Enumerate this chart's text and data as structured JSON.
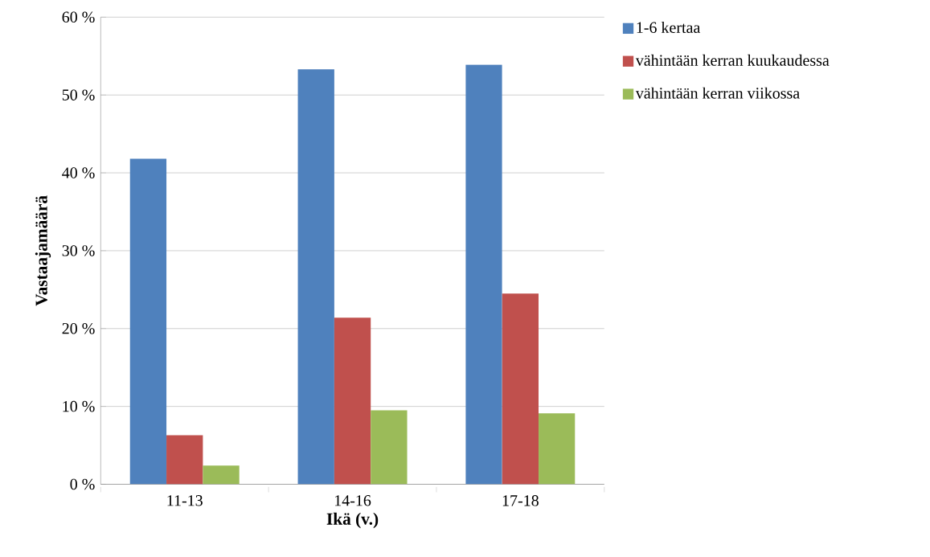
{
  "chart_data": {
    "type": "bar",
    "xlabel": "Ikä (v.)",
    "ylabel": "Vastaajamäärä",
    "categories": [
      "11-13",
      "14-16",
      "17-18"
    ],
    "series": [
      {
        "name": "1-6 kertaa",
        "color": "#4f81bd",
        "values": [
          41.8,
          53.3,
          53.9
        ]
      },
      {
        "name": "vähintään kerran kuukaudessa",
        "color": "#c0504d",
        "values": [
          6.3,
          21.4,
          24.5
        ]
      },
      {
        "name": "vähintään kerran viikossa",
        "color": "#9bbb59",
        "values": [
          2.4,
          9.5,
          9.1
        ]
      }
    ],
    "ylim": [
      0,
      60
    ],
    "yticks": [
      {
        "value": 0,
        "label": "0 %"
      },
      {
        "value": 10,
        "label": "10 %"
      },
      {
        "value": 20,
        "label": "20 %"
      },
      {
        "value": 30,
        "label": "30 %"
      },
      {
        "value": 40,
        "label": "40 %"
      },
      {
        "value": 50,
        "label": "50 %"
      },
      {
        "value": 60,
        "label": "60 %"
      }
    ],
    "grid": "y",
    "legend": "right"
  }
}
